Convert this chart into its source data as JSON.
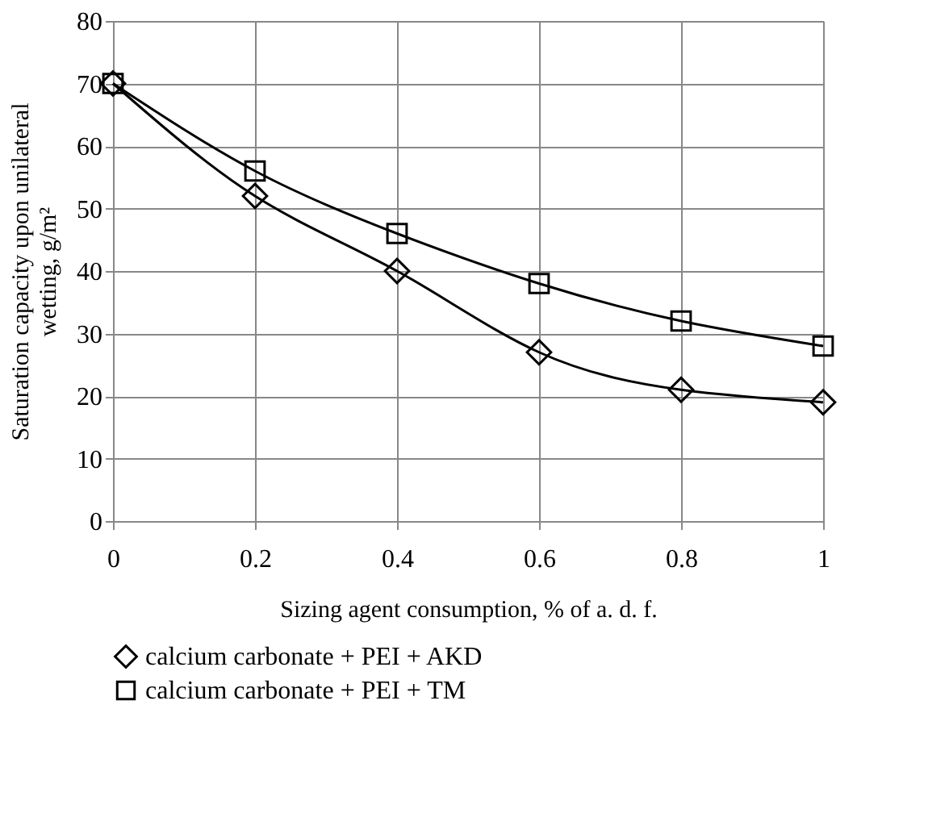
{
  "chart_data": {
    "type": "line",
    "xlabel": "Sizing agent consumption, % of a. d. f.",
    "ylabel": "Saturation capacity upon unilateral\nwetting, g/m²",
    "x": [
      0,
      0.2,
      0.4,
      0.6,
      0.8,
      1
    ],
    "series": [
      {
        "name": "calcium carbonate + PEI + AKD",
        "color": "#000000",
        "marker": "diamond",
        "values": [
          70,
          52,
          40,
          27,
          21,
          19
        ]
      },
      {
        "name": "calcium carbonate + PEI + TM",
        "color": "#000000",
        "marker": "square",
        "values": [
          70,
          56,
          46,
          38,
          32,
          28
        ]
      }
    ],
    "xlim": [
      0,
      1
    ],
    "xticks": [
      0,
      0.2,
      0.4,
      0.6,
      0.8,
      1
    ],
    "ylim": [
      0,
      80
    ],
    "yticks": [
      0,
      10,
      20,
      30,
      40,
      50,
      60,
      70,
      80
    ],
    "grid": true,
    "legend": "bottom",
    "line_style": "solid"
  }
}
